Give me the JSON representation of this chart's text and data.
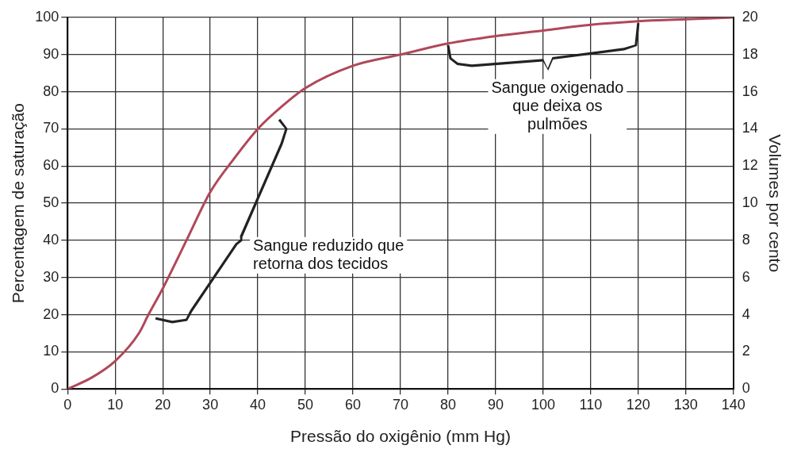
{
  "chart_data": {
    "type": "line",
    "xlabel": "Pressão do oxigênio (mm Hg)",
    "ylabel": "Percentagem de saturação",
    "y2label": "Volumes por cento",
    "x": [
      0,
      5,
      10,
      15,
      17,
      20,
      25,
      30,
      35,
      40,
      45,
      50,
      60,
      70,
      80,
      90,
      100,
      110,
      120,
      130,
      140
    ],
    "series": [
      {
        "color": "#b0485a",
        "values": [
          0,
          3,
          7.5,
          15,
          20,
          27,
          40,
          53,
          62,
          70,
          76,
          81,
          87,
          90,
          93,
          95,
          96.5,
          98,
          99,
          99.5,
          100
        ]
      }
    ],
    "xlim": [
      0,
      140
    ],
    "xticks": [
      0,
      10,
      20,
      30,
      40,
      50,
      60,
      70,
      80,
      90,
      100,
      110,
      120,
      130,
      140
    ],
    "ylim": [
      0,
      100
    ],
    "yticks": [
      0,
      10,
      20,
      30,
      40,
      50,
      60,
      70,
      80,
      90,
      100
    ],
    "y2lim": [
      0,
      20
    ],
    "y2ticks": [
      0,
      2,
      4,
      6,
      8,
      10,
      12,
      14,
      16,
      18,
      20
    ],
    "grid": true,
    "marker": "none",
    "line_style": "solid",
    "annotations": [
      "Sangue reduzido que\nretorna dos tecidos",
      "Sangue oxigenado\nque deixa os\npulmões"
    ]
  }
}
